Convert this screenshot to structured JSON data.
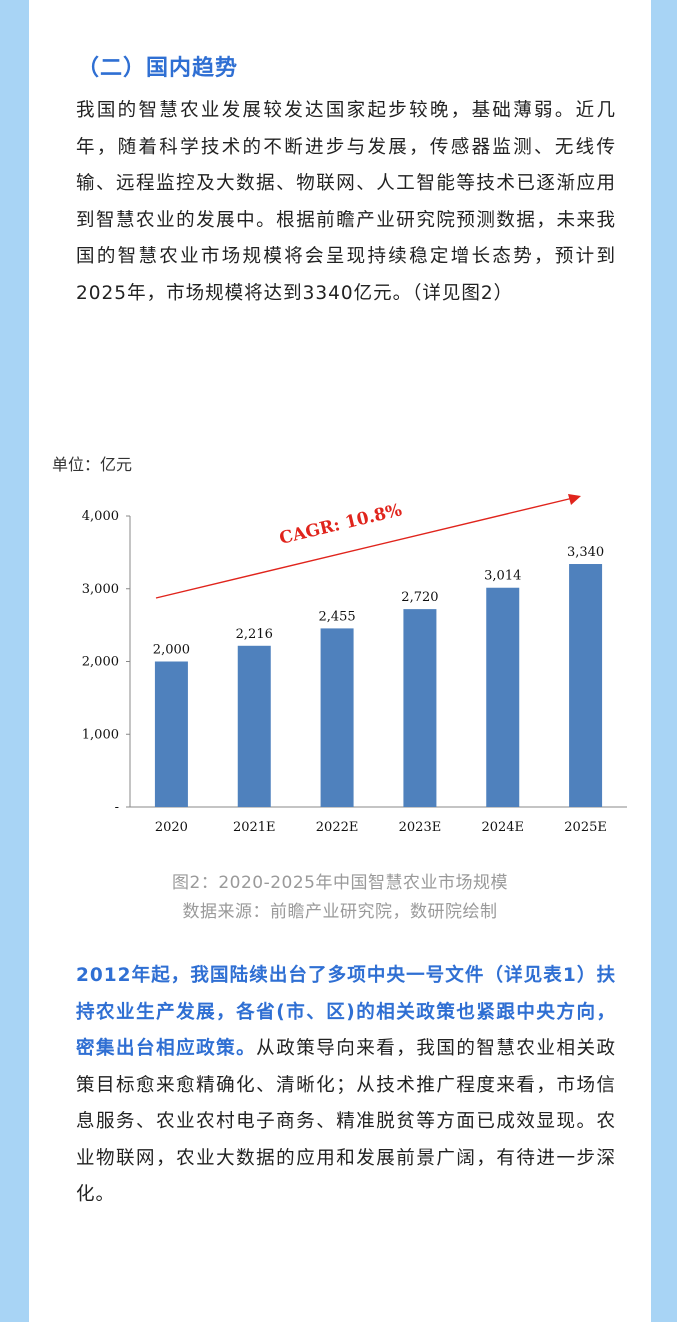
{
  "section": {
    "title": "（二）国内趋势",
    "paragraph1": "我国的智慧农业发展较发达国家起步较晚，基础薄弱。近几年，随着科学技术的不断进步与发展，传感器监测、无线传输、远程监控及大数据、物联网、人工智能等技术已逐渐应用到智慧农业的发展中。根据前瞻产业研究院预测数据，未来我国的智慧农业市场规模将会呈现持续稳定增长态势，预计到2025年，市场规模将达到3340亿元。（详见图2）"
  },
  "chart_unit": "单位：亿元",
  "chart_data": {
    "type": "bar",
    "categories": [
      "2020",
      "2021E",
      "2022E",
      "2023E",
      "2024E",
      "2025E"
    ],
    "values": [
      2000,
      2216,
      2455,
      2720,
      3014,
      3340
    ],
    "value_labels": [
      "2,000",
      "2,216",
      "2,455",
      "2,720",
      "3,014",
      "3,340"
    ],
    "ylim": [
      0,
      4000
    ],
    "yticks": [
      0,
      1000,
      2000,
      3000,
      4000
    ],
    "ytick_labels": [
      "-",
      "1,000",
      "2,000",
      "3,000",
      "4,000"
    ],
    "annotation": "CAGR: 10.8%",
    "bar_color": "#4f81bd",
    "annotation_color": "#e0241c",
    "grid": false
  },
  "caption": {
    "line1": "图2：2020-2025年中国智慧农业市场规模",
    "line2": "数据来源：前瞻产业研究院，数研院绘制"
  },
  "section2": {
    "highlight": "2012年起，我国陆续出台了多项中央一号文件（详见表1）扶持农业生产发展，各省(市、区)的相关政策也紧跟中央方向，密集出台相应政策。",
    "body": "从政策导向来看，我国的智慧农业相关政策目标愈来愈精确化、清晰化；从技术推广程度来看，市场信息服务、农业农村电子商务、精准脱贫等方面已成效显现。农业物联网，农业大数据的应用和发展前景广阔，有待进一步深化。"
  },
  "colors": {
    "accent": "#2f6fd3",
    "side_background": "#a8d4f5"
  }
}
